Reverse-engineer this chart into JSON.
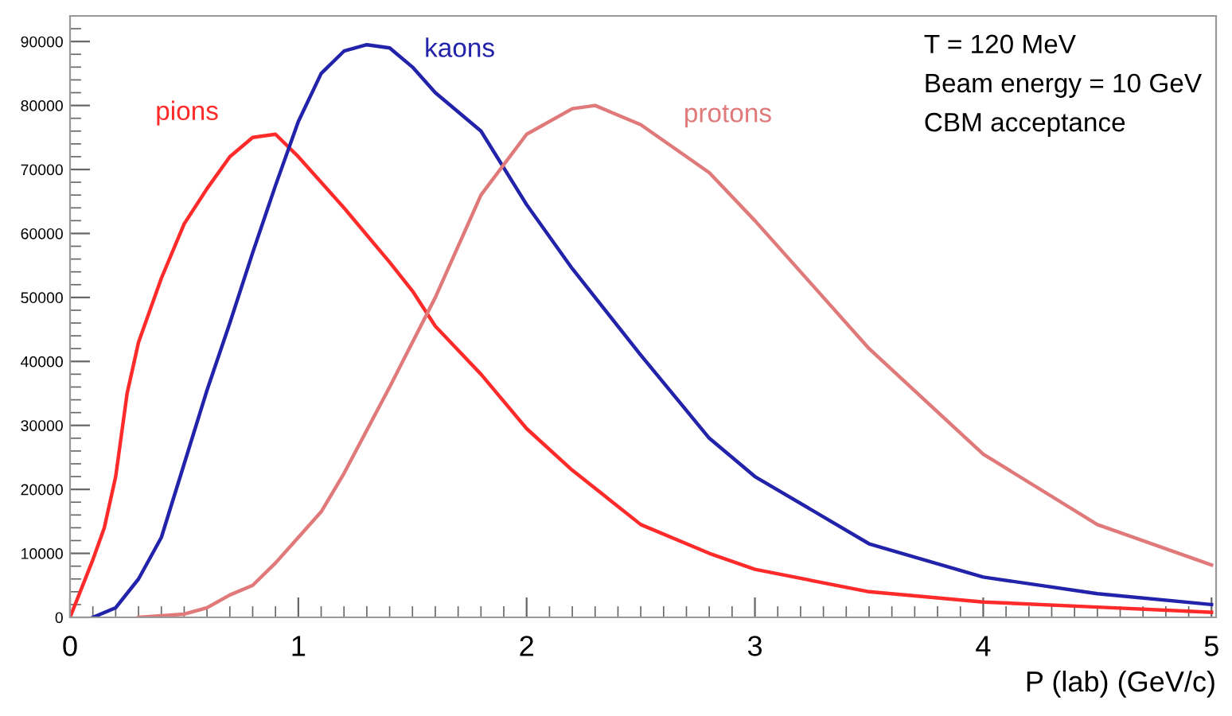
{
  "chart_data": {
    "type": "line",
    "xlabel": "P (lab) (GeV/c)",
    "xlim": [
      0,
      5.02
    ],
    "ylim": [
      0,
      94000
    ],
    "xticks": [
      0,
      1,
      2,
      3,
      4,
      5
    ],
    "yticks": [
      0,
      10000,
      20000,
      30000,
      40000,
      50000,
      60000,
      70000,
      80000,
      90000
    ],
    "grid": false,
    "annotations": [
      "T = 120 MeV",
      "Beam energy = 10 GeV",
      "CBM acceptance"
    ],
    "series": [
      {
        "name": "pions",
        "color": "#ff2a2a",
        "x": [
          0,
          0.1,
          0.15,
          0.2,
          0.25,
          0.3,
          0.4,
          0.5,
          0.6,
          0.7,
          0.8,
          0.9,
          1.0,
          1.2,
          1.4,
          1.5,
          1.6,
          1.8,
          2.0,
          2.2,
          2.5,
          2.8,
          3.0,
          3.5,
          4.0,
          4.5,
          5.0
        ],
        "values": [
          0,
          9000,
          14000,
          22000,
          35000,
          43000,
          53000,
          61500,
          67000,
          72000,
          75000,
          75500,
          72000,
          64000,
          55500,
          51000,
          45500,
          38000,
          29500,
          23000,
          14500,
          10000,
          7500,
          4000,
          2400,
          1600,
          800
        ]
      },
      {
        "name": "kaons",
        "color": "#2222aa",
        "x": [
          0.1,
          0.2,
          0.3,
          0.4,
          0.5,
          0.6,
          0.7,
          0.8,
          0.9,
          1.0,
          1.1,
          1.2,
          1.3,
          1.4,
          1.5,
          1.6,
          1.8,
          2.0,
          2.2,
          2.5,
          2.8,
          3.0,
          3.5,
          4.0,
          4.5,
          5.0
        ],
        "values": [
          0,
          1500,
          6000,
          12500,
          24000,
          35500,
          46000,
          57000,
          67500,
          77500,
          85000,
          88500,
          89500,
          89000,
          86000,
          82000,
          76000,
          64500,
          54500,
          41000,
          28000,
          22000,
          11500,
          6300,
          3700,
          2000
        ]
      },
      {
        "name": "protons",
        "color": "#e07a7a",
        "x": [
          0.3,
          0.5,
          0.6,
          0.7,
          0.8,
          0.9,
          1.0,
          1.1,
          1.2,
          1.4,
          1.6,
          1.8,
          2.0,
          2.2,
          2.3,
          2.5,
          2.8,
          3.0,
          3.5,
          4.0,
          4.5,
          5.0
        ],
        "values": [
          0,
          500,
          1500,
          3500,
          5000,
          8500,
          12500,
          16500,
          22500,
          36000,
          50000,
          66000,
          75500,
          79500,
          80000,
          77000,
          69500,
          62000,
          42000,
          25500,
          14500,
          8200
        ]
      }
    ]
  }
}
